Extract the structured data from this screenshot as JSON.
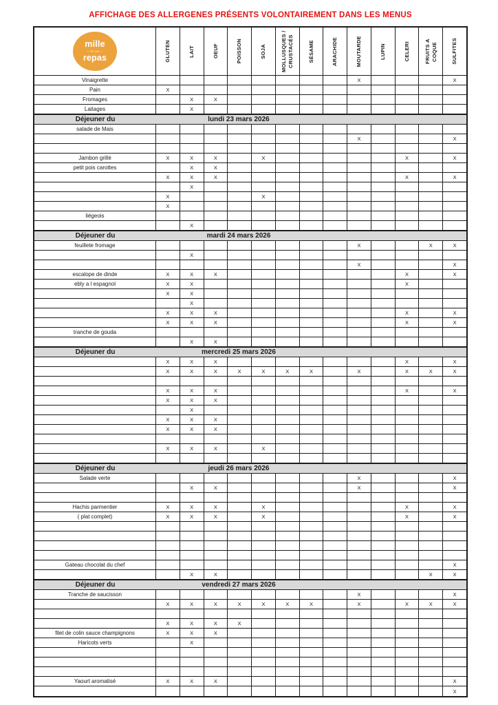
{
  "title": "AFFICHAGE DES ALLERGENES PRÉSENTS VOLONTAIREMENT DANS LES MENUS",
  "logo": {
    "line1": "mille",
    "line2": "– et un –",
    "line3": "repas"
  },
  "colors": {
    "title_red": "#E61212",
    "band_gray": "#D9D9D9",
    "logo_amber": "#ECA33B",
    "border": "#1B1B1B"
  },
  "mark": "X",
  "columns": [
    "GLUTEN",
    "LAIT",
    "OEUF",
    "POISSON",
    "SOJA",
    "MOLLUSQUES / CRUSTACÉS",
    "SÉSAME",
    "ARACHIDE",
    "MOUTARDE",
    "LUPIN",
    "CELERI",
    "FRUITS A COQUE",
    "SULFITES"
  ],
  "intro_rows": [
    {
      "label": "Vinaigrette",
      "cells": [
        "",
        "",
        "",
        "",
        "",
        "",
        "",
        "",
        "X",
        "",
        "",
        "",
        "X"
      ]
    },
    {
      "label": "Pain",
      "cells": [
        "X",
        "",
        "",
        "",
        "",
        "",
        "",
        "",
        "",
        "",
        "",
        "",
        ""
      ]
    },
    {
      "label": "Fromages",
      "cells": [
        "",
        "X",
        "X",
        "",
        "",
        "",
        "",
        "",
        "",
        "",
        "",
        "",
        ""
      ]
    },
    {
      "label": "Laitages",
      "cells": [
        "",
        "X",
        "",
        "",
        "",
        "",
        "",
        "",
        "",
        "",
        "",
        "",
        ""
      ]
    }
  ],
  "sections": [
    {
      "header": {
        "label": "Déjeuner du",
        "date": "lundi 23 mars 2026"
      },
      "rows": [
        {
          "label": "salade de Mais",
          "cells": [
            "",
            "",
            "",
            "",
            "",
            "",
            "",
            "",
            "",
            "",
            "",
            "",
            ""
          ]
        },
        {
          "label": "",
          "cells": [
            "",
            "",
            "",
            "",
            "",
            "",
            "",
            "",
            "X",
            "",
            "",
            "",
            "X"
          ]
        },
        {
          "label": "",
          "cells": [
            "",
            "",
            "",
            "",
            "",
            "",
            "",
            "",
            "",
            "",
            "",
            "",
            ""
          ]
        },
        {
          "label": "Jambon grillé",
          "cells": [
            "X",
            "X",
            "X",
            "",
            "X",
            "",
            "",
            "",
            "",
            "",
            "X",
            "",
            "X"
          ]
        },
        {
          "label": "petit pois carottes",
          "cells": [
            "",
            "X",
            "X",
            "",
            "",
            "",
            "",
            "",
            "",
            "",
            "",
            "",
            ""
          ]
        },
        {
          "label": "",
          "cells": [
            "X",
            "X",
            "X",
            "",
            "",
            "",
            "",
            "",
            "",
            "",
            "X",
            "",
            "X"
          ]
        },
        {
          "label": "",
          "cells": [
            "",
            "X",
            "",
            "",
            "",
            "",
            "",
            "",
            "",
            "",
            "",
            "",
            ""
          ]
        },
        {
          "label": "",
          "cells": [
            "X",
            "",
            "",
            "",
            "X",
            "",
            "",
            "",
            "",
            "",
            "",
            "",
            ""
          ]
        },
        {
          "label": "",
          "cells": [
            "X",
            "",
            "",
            "",
            "",
            "",
            "",
            "",
            "",
            "",
            "",
            "",
            ""
          ]
        },
        {
          "label": "liégeois",
          "cells": [
            "",
            "",
            "",
            "",
            "",
            "",
            "",
            "",
            "",
            "",
            "",
            "",
            ""
          ]
        },
        {
          "label": "",
          "cells": [
            "",
            "X",
            "",
            "",
            "",
            "",
            "",
            "",
            "",
            "",
            "",
            "",
            ""
          ]
        }
      ]
    },
    {
      "header": {
        "label": "Déjeuner du",
        "date": "mardi 24 mars 2026"
      },
      "rows": [
        {
          "label": "feuillete fromage",
          "cells": [
            "",
            "",
            "",
            "",
            "",
            "",
            "",
            "",
            "X",
            "",
            "",
            "X",
            "X"
          ]
        },
        {
          "label": "",
          "cells": [
            "",
            "X",
            "",
            "",
            "",
            "",
            "",
            "",
            "",
            "",
            "",
            "",
            ""
          ]
        },
        {
          "label": "",
          "cells": [
            "",
            "",
            "",
            "",
            "",
            "",
            "",
            "",
            "X",
            "",
            "",
            "",
            "X"
          ]
        },
        {
          "label": "escalope de dinde",
          "cells": [
            "X",
            "X",
            "X",
            "",
            "",
            "",
            "",
            "",
            "",
            "",
            "X",
            "",
            "X"
          ]
        },
        {
          "label": "ebly a l espagnol",
          "cells": [
            "X",
            "X",
            "",
            "",
            "",
            "",
            "",
            "",
            "",
            "",
            "X",
            "",
            ""
          ]
        },
        {
          "label": "",
          "cells": [
            "X",
            "X",
            "",
            "",
            "",
            "",
            "",
            "",
            "",
            "",
            "",
            "",
            ""
          ]
        },
        {
          "label": "",
          "cells": [
            "",
            "X",
            "",
            "",
            "",
            "",
            "",
            "",
            "",
            "",
            "",
            "",
            ""
          ]
        },
        {
          "label": "",
          "cells": [
            "X",
            "X",
            "X",
            "",
            "",
            "",
            "",
            "",
            "",
            "",
            "X",
            "",
            "X"
          ]
        },
        {
          "label": "",
          "cells": [
            "X",
            "X",
            "X",
            "",
            "",
            "",
            "",
            "",
            "",
            "",
            "X",
            "",
            "X"
          ]
        },
        {
          "label": "tranche de gouda",
          "cells": [
            "",
            "",
            "",
            "",
            "",
            "",
            "",
            "",
            "",
            "",
            "",
            "",
            ""
          ]
        },
        {
          "label": "",
          "cells": [
            "",
            "X",
            "X",
            "",
            "",
            "",
            "",
            "",
            "",
            "",
            "",
            "",
            ""
          ]
        }
      ]
    },
    {
      "header": {
        "label": "Déjeuner du",
        "date": "mercredi 25 mars 2026"
      },
      "rows": [
        {
          "label": "",
          "cells": [
            "X",
            "X",
            "X",
            "",
            "",
            "",
            "",
            "",
            "",
            "",
            "X",
            "",
            "X"
          ]
        },
        {
          "label": "",
          "cells": [
            "X",
            "X",
            "X",
            "X",
            "X",
            "X",
            "X",
            "",
            "X",
            "",
            "X",
            "X",
            "X"
          ]
        },
        {
          "label": "",
          "cells": [
            "",
            "",
            "",
            "",
            "",
            "",
            "",
            "",
            "",
            "",
            "",
            "",
            ""
          ]
        },
        {
          "label": "",
          "cells": [
            "X",
            "X",
            "X",
            "",
            "",
            "",
            "",
            "",
            "",
            "",
            "X",
            "",
            "X"
          ]
        },
        {
          "label": "",
          "cells": [
            "X",
            "X",
            "X",
            "",
            "",
            "",
            "",
            "",
            "",
            "",
            "",
            "",
            ""
          ]
        },
        {
          "label": "",
          "cells": [
            "",
            "X",
            "",
            "",
            "",
            "",
            "",
            "",
            "",
            "",
            "",
            "",
            ""
          ]
        },
        {
          "label": "",
          "cells": [
            "X",
            "X",
            "X",
            "",
            "",
            "",
            "",
            "",
            "",
            "",
            "",
            "",
            ""
          ]
        },
        {
          "label": "",
          "cells": [
            "X",
            "X",
            "X",
            "",
            "",
            "",
            "",
            "",
            "",
            "",
            "",
            "",
            ""
          ]
        },
        {
          "label": "",
          "cells": [
            "",
            "",
            "",
            "",
            "",
            "",
            "",
            "",
            "",
            "",
            "",
            "",
            ""
          ]
        },
        {
          "label": "",
          "cells": [
            "X",
            "X",
            "X",
            "",
            "X",
            "",
            "",
            "",
            "",
            "",
            "",
            "",
            ""
          ]
        },
        {
          "label": "",
          "cells": [
            "",
            "",
            "",
            "",
            "",
            "",
            "",
            "",
            "",
            "",
            "",
            "",
            ""
          ]
        }
      ]
    },
    {
      "header": {
        "label": "Déjeuner du",
        "date": "jeudi 26 mars 2026"
      },
      "rows": [
        {
          "label": "Salade verte",
          "cells": [
            "",
            "",
            "",
            "",
            "",
            "",
            "",
            "",
            "X",
            "",
            "",
            "",
            "X"
          ]
        },
        {
          "label": "",
          "cells": [
            "",
            "X",
            "X",
            "",
            "",
            "",
            "",
            "",
            "X",
            "",
            "",
            "",
            "X"
          ]
        },
        {
          "label": "",
          "cells": [
            "",
            "",
            "",
            "",
            "",
            "",
            "",
            "",
            "",
            "",
            "",
            "",
            ""
          ]
        },
        {
          "label": "Hachis parmentier",
          "cells": [
            "X",
            "X",
            "X",
            "",
            "X",
            "",
            "",
            "",
            "",
            "",
            "X",
            "",
            "X"
          ]
        },
        {
          "label": "( plat complet)",
          "cells": [
            "X",
            "X",
            "X",
            "",
            "X",
            "",
            "",
            "",
            "",
            "",
            "X",
            "",
            "X"
          ]
        },
        {
          "label": "",
          "cells": [
            "",
            "",
            "",
            "",
            "",
            "",
            "",
            "",
            "",
            "",
            "",
            "",
            ""
          ]
        },
        {
          "label": "",
          "cells": [
            "",
            "",
            "",
            "",
            "",
            "",
            "",
            "",
            "",
            "",
            "",
            "",
            ""
          ]
        },
        {
          "label": "",
          "cells": [
            "",
            "",
            "",
            "",
            "",
            "",
            "",
            "",
            "",
            "",
            "",
            "",
            ""
          ]
        },
        {
          "label": "",
          "cells": [
            "",
            "",
            "",
            "",
            "",
            "",
            "",
            "",
            "",
            "",
            "",
            "",
            ""
          ]
        },
        {
          "label": "Gateau chocolat du chef",
          "cells": [
            "",
            "",
            "",
            "",
            "",
            "",
            "",
            "",
            "",
            "",
            "",
            "",
            "X"
          ]
        },
        {
          "label": "",
          "cells": [
            "",
            "X",
            "X",
            "",
            "",
            "",
            "",
            "",
            "",
            "",
            "",
            "X",
            "X"
          ]
        }
      ]
    },
    {
      "header": {
        "label": "Déjeuner du",
        "date": "vendredi 27 mars 2026"
      },
      "rows": [
        {
          "label": "Tranche de saucisson",
          "cells": [
            "",
            "",
            "",
            "",
            "",
            "",
            "",
            "",
            "X",
            "",
            "",
            "",
            "X"
          ]
        },
        {
          "label": "",
          "cells": [
            "X",
            "X",
            "X",
            "X",
            "X",
            "X",
            "X",
            "",
            "X",
            "",
            "X",
            "X",
            "X"
          ]
        },
        {
          "label": "",
          "cells": [
            "",
            "",
            "",
            "",
            "",
            "",
            "",
            "",
            "",
            "",
            "",
            "",
            ""
          ]
        },
        {
          "label": "",
          "cells": [
            "X",
            "X",
            "X",
            "X",
            "",
            "",
            "",
            "",
            "",
            "",
            "",
            "",
            ""
          ]
        },
        {
          "label": "filet de colin sauce champignons",
          "cells": [
            "X",
            "X",
            "X",
            "",
            "",
            "",
            "",
            "",
            "",
            "",
            "",
            "",
            ""
          ]
        },
        {
          "label": "Haricots verts",
          "cells": [
            "",
            "X",
            "",
            "",
            "",
            "",
            "",
            "",
            "",
            "",
            "",
            "",
            ""
          ]
        },
        {
          "label": "",
          "cells": [
            "",
            "",
            "",
            "",
            "",
            "",
            "",
            "",
            "",
            "",
            "",
            "",
            ""
          ]
        },
        {
          "label": "",
          "cells": [
            "",
            "",
            "",
            "",
            "",
            "",
            "",
            "",
            "",
            "",
            "",
            "",
            ""
          ]
        },
        {
          "label": "",
          "cells": [
            "",
            "",
            "",
            "",
            "",
            "",
            "",
            "",
            "",
            "",
            "",
            "",
            ""
          ]
        },
        {
          "label": "Yaourt aromatisé",
          "cells": [
            "X",
            "X",
            "X",
            "",
            "",
            "",
            "",
            "",
            "",
            "",
            "",
            "",
            "X"
          ]
        },
        {
          "label": "",
          "cells": [
            "",
            "",
            "",
            "",
            "",
            "",
            "",
            "",
            "",
            "",
            "",
            "",
            "X"
          ]
        }
      ]
    }
  ]
}
